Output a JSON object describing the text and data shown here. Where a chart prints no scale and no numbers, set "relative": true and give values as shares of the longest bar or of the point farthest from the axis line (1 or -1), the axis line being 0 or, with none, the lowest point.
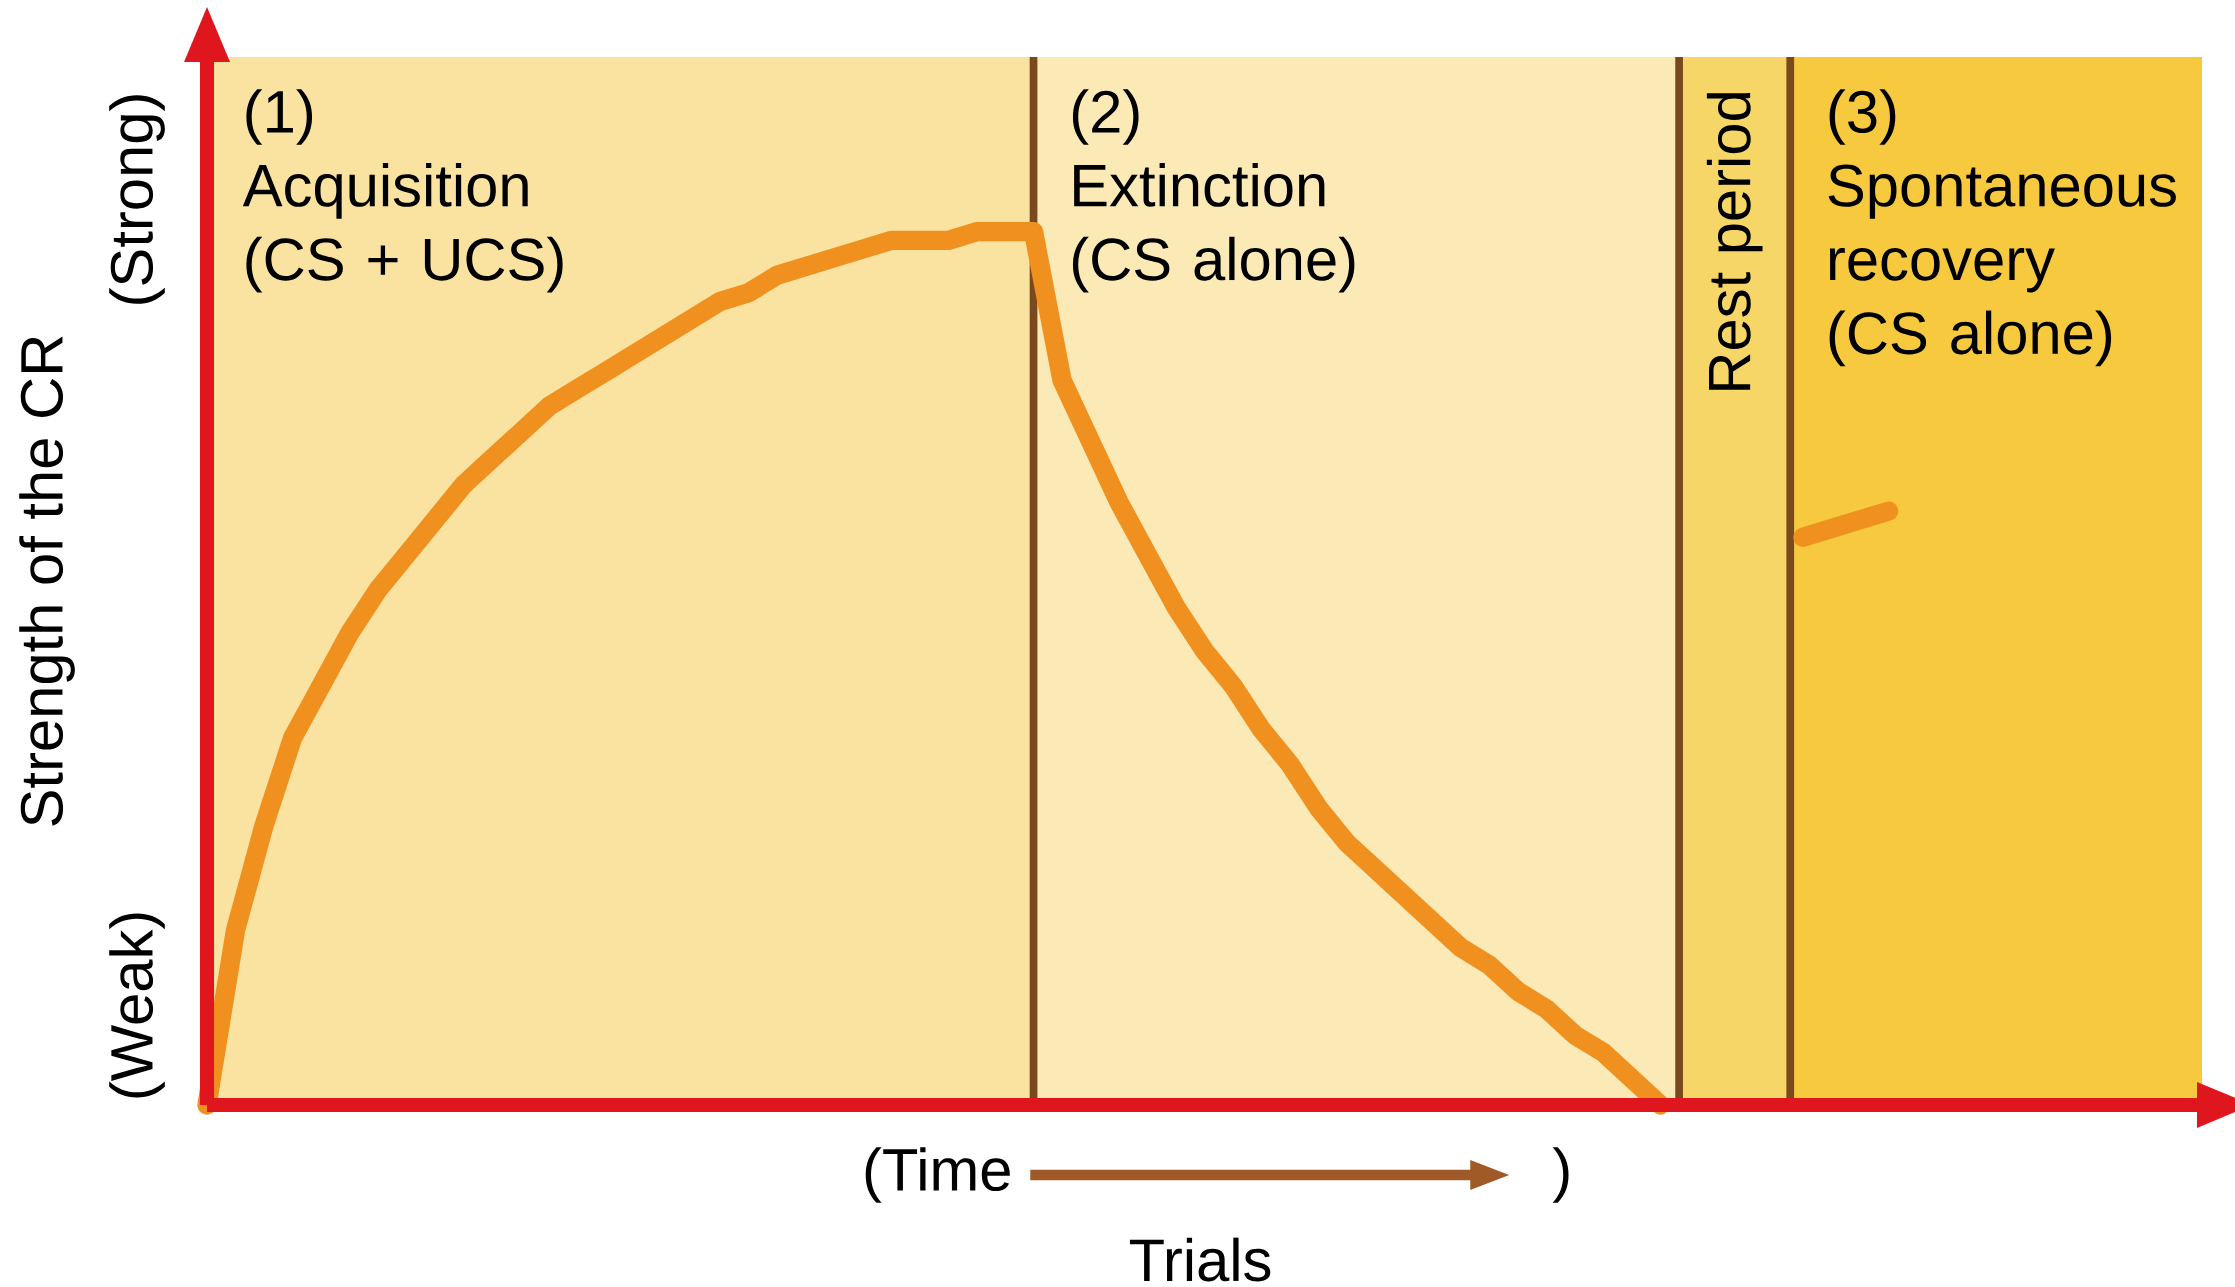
{
  "chart_data": {
    "type": "line",
    "relative": true,
    "xlabel": "Trials",
    "ylabel": "Strength of the CR",
    "categories": [
      null,
      null,
      null,
      null,
      null,
      null,
      null,
      null,
      null,
      null,
      null,
      null,
      null,
      null,
      null,
      null,
      null,
      null,
      null,
      null,
      null,
      null,
      null,
      null,
      null,
      null,
      null,
      null,
      null,
      null,
      null,
      null,
      null,
      null,
      null,
      null,
      null,
      null,
      null,
      null,
      null,
      null,
      null,
      null,
      null,
      null,
      null,
      null,
      null,
      null,
      null,
      null,
      null,
      null,
      null,
      null,
      null,
      null,
      null,
      null,
      null,
      null,
      null,
      null,
      null,
      null,
      null,
      null,
      null,
      null,
      null
    ],
    "series": [
      {
        "color": "#f0901e",
        "values": [
          0,
          0.2,
          0.32,
          0.42,
          0.48,
          0.54,
          0.59,
          0.63,
          0.67,
          0.71,
          0.74,
          0.77,
          0.8,
          0.82,
          0.84,
          0.86,
          0.88,
          0.9,
          0.92,
          0.93,
          0.95,
          0.96,
          0.97,
          0.98,
          0.99,
          0.99,
          0.99,
          1,
          1,
          1,
          0.83,
          0.76,
          0.69,
          0.63,
          0.57,
          0.52,
          0.48,
          0.43,
          0.39,
          0.34,
          0.3,
          0.27,
          0.24,
          0.21,
          0.18,
          0.16,
          0.13,
          0.11,
          0.08,
          0.06,
          0.03,
          0,
          null,
          null,
          null,
          null,
          null,
          null,
          null,
          null,
          null,
          null,
          null,
          null,
          null,
          null,
          null,
          null,
          null,
          null,
          null
        ]
      },
      {
        "color": "#f0901e",
        "values": [
          null,
          null,
          null,
          null,
          null,
          null,
          null,
          null,
          null,
          null,
          null,
          null,
          null,
          null,
          null,
          null,
          null,
          null,
          null,
          null,
          null,
          null,
          null,
          null,
          null,
          null,
          null,
          null,
          null,
          null,
          null,
          null,
          null,
          null,
          null,
          null,
          null,
          null,
          null,
          null,
          null,
          null,
          null,
          null,
          null,
          null,
          null,
          null,
          null,
          null,
          null,
          null,
          null,
          null,
          null,
          null,
          0.65,
          0.66,
          0.67,
          0.68,
          null,
          null,
          null,
          null,
          null,
          null,
          null,
          null,
          null,
          null,
          null
        ]
      }
    ],
    "annotations": [
      "(Strong)",
      "(Weak)",
      "(Time",
      ")",
      "(1) Acquisition (CS + UCS)",
      "(2) Extinction (CS alone)",
      "Rest period",
      "(3) Spontaneous recovery (CS alone)"
    ]
  }
}
